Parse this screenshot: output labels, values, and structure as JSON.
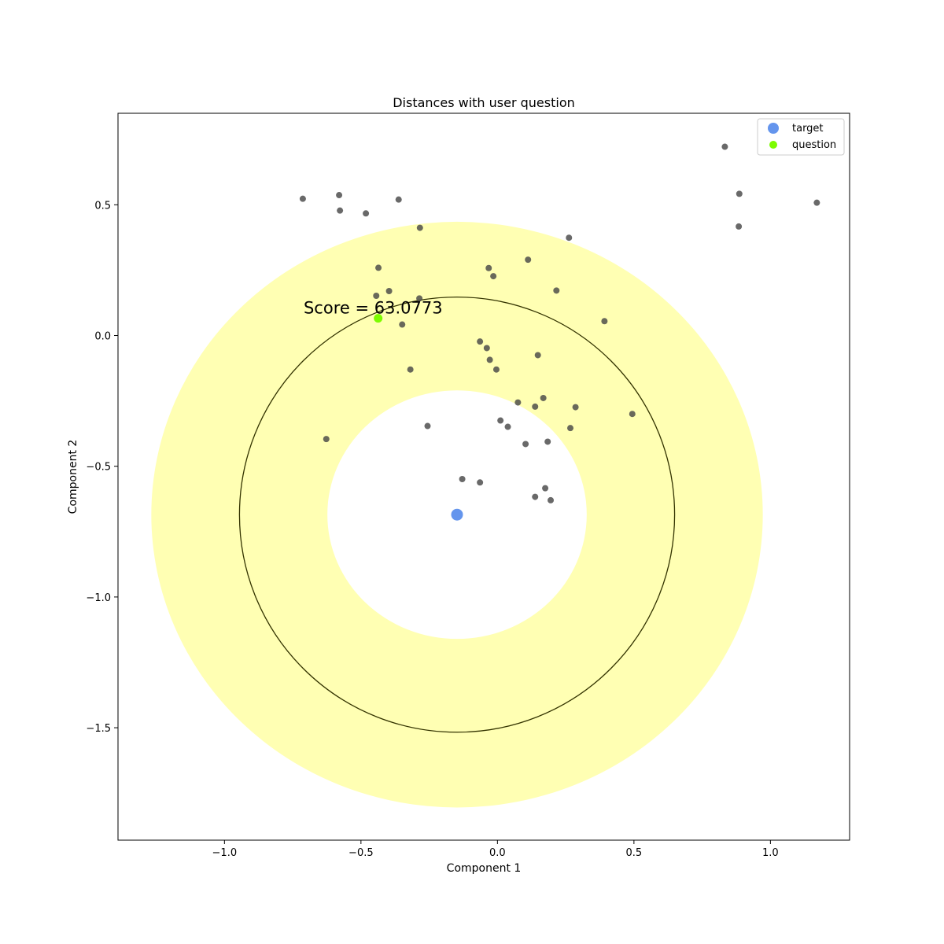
{
  "chart_data": {
    "type": "scatter",
    "title": "Distances with user question",
    "xlabel": "Component 1",
    "ylabel": "Component 2",
    "xlim": [
      -1.39,
      1.29
    ],
    "ylim": [
      -1.93,
      0.85
    ],
    "xticks": [
      -1.0,
      -0.5,
      0.0,
      0.5,
      1.0
    ],
    "xtick_labels": [
      "−1.0",
      "−0.5",
      "0.0",
      "0.5",
      "1.0"
    ],
    "yticks": [
      0.5,
      0.0,
      -0.5,
      -1.0,
      -1.5
    ],
    "ytick_labels": [
      "0.5",
      "0.0",
      "−0.5",
      "−1.0",
      "−1.5"
    ],
    "grid": false,
    "legend_position": "top-right",
    "target": {
      "name": "target",
      "x": -0.148,
      "y": -0.685,
      "color": "#6495ED"
    },
    "question": {
      "name": "question",
      "x": -0.437,
      "y": 0.066,
      "color": "#7CFC00"
    },
    "annulus": {
      "inner_radius": 0.475,
      "outer_radius": 1.12,
      "color": "#FFFF99"
    },
    "ring_radius": 0.797,
    "annotation": {
      "text": "Score = 63.0773",
      "x": -0.71,
      "y": 0.085
    },
    "points_color": "#444444",
    "points": [
      [
        -0.713,
        0.523
      ],
      [
        -0.58,
        0.537
      ],
      [
        -0.577,
        0.478
      ],
      [
        -0.482,
        0.467
      ],
      [
        -0.362,
        0.52
      ],
      [
        -0.284,
        0.412
      ],
      [
        0.262,
        0.374
      ],
      [
        0.833,
        0.722
      ],
      [
        0.886,
        0.542
      ],
      [
        0.884,
        0.417
      ],
      [
        1.17,
        0.508
      ],
      [
        -0.436,
        0.259
      ],
      [
        -0.397,
        0.17
      ],
      [
        -0.444,
        0.152
      ],
      [
        -0.286,
        0.142
      ],
      [
        -0.349,
        0.042
      ],
      [
        -0.032,
        0.258
      ],
      [
        -0.015,
        0.227
      ],
      [
        0.112,
        0.29
      ],
      [
        0.216,
        0.172
      ],
      [
        0.392,
        0.055
      ],
      [
        -0.064,
        -0.023
      ],
      [
        -0.039,
        -0.048
      ],
      [
        -0.028,
        -0.093
      ],
      [
        -0.004,
        -0.13
      ],
      [
        0.148,
        -0.075
      ],
      [
        -0.319,
        -0.13
      ],
      [
        0.075,
        -0.256
      ],
      [
        0.168,
        -0.239
      ],
      [
        0.138,
        -0.272
      ],
      [
        0.286,
        -0.274
      ],
      [
        0.494,
        -0.3
      ],
      [
        0.267,
        -0.354
      ],
      [
        -0.627,
        -0.396
      ],
      [
        -0.256,
        -0.346
      ],
      [
        0.011,
        -0.325
      ],
      [
        0.038,
        -0.349
      ],
      [
        0.103,
        -0.415
      ],
      [
        0.184,
        -0.406
      ],
      [
        -0.129,
        -0.549
      ],
      [
        -0.064,
        -0.562
      ],
      [
        0.175,
        -0.584
      ],
      [
        0.138,
        -0.617
      ],
      [
        0.195,
        -0.63
      ]
    ]
  }
}
